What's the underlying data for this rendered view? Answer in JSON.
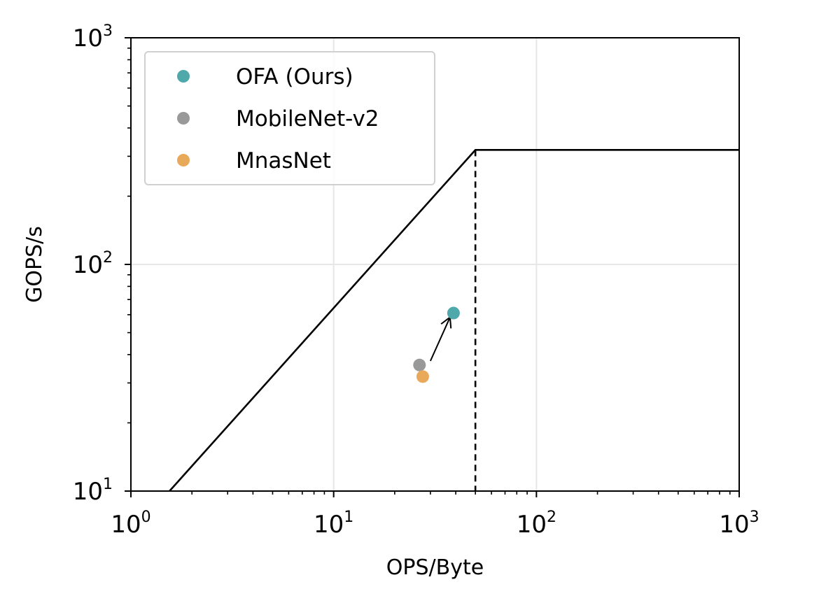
{
  "chart_data": {
    "type": "scatter",
    "title": "",
    "xlabel": "OPS/Byte",
    "ylabel": "GOPS/s",
    "x_scale": "log",
    "y_scale": "log",
    "xlim": [
      1,
      1000
    ],
    "ylim": [
      10,
      1000
    ],
    "x_ticks": [
      {
        "value": 1,
        "base": "10",
        "exp": "0"
      },
      {
        "value": 10,
        "base": "10",
        "exp": "1"
      },
      {
        "value": 100,
        "base": "10",
        "exp": "2"
      },
      {
        "value": 1000,
        "base": "10",
        "exp": "3"
      }
    ],
    "y_ticks": [
      {
        "value": 10,
        "base": "10",
        "exp": "1"
      },
      {
        "value": 100,
        "base": "10",
        "exp": "2"
      },
      {
        "value": 1000,
        "base": "10",
        "exp": "3"
      }
    ],
    "grid": true,
    "legend_position": "top-left",
    "series": [
      {
        "name": "OFA (Ours)",
        "color": "#4fa8a9",
        "points": [
          {
            "x": 39,
            "y": 61
          }
        ]
      },
      {
        "name": "MobileNet-v2",
        "color": "#999999",
        "points": [
          {
            "x": 26.5,
            "y": 36
          }
        ]
      },
      {
        "name": "MnasNet",
        "color": "#e9a95a",
        "points": [
          {
            "x": 27.5,
            "y": 32
          }
        ]
      }
    ],
    "roofline": {
      "points": [
        {
          "x": 1.55,
          "y": 10
        },
        {
          "x": 50,
          "y": 320
        },
        {
          "x": 1000,
          "y": 320
        }
      ],
      "ridge_x": 50,
      "ridge_y": 320,
      "color": "#000000"
    },
    "arrow": {
      "from": {
        "x": 30,
        "y": 37.5
      },
      "to": {
        "x": 37.5,
        "y": 58.5
      }
    }
  }
}
